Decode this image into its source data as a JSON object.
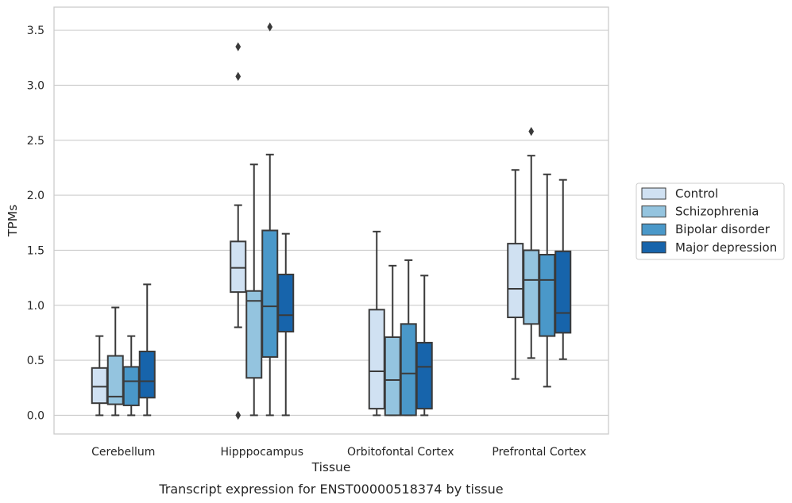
{
  "chart_data": {
    "type": "boxplot",
    "caption": "Transcript expression for ENST00000518374 by tissue",
    "xlabel": "Tissue",
    "ylabel": "TPMs",
    "ylim": [
      -0.17,
      3.71
    ],
    "yticks": [
      0.0,
      0.5,
      1.0,
      1.5,
      2.0,
      2.5,
      3.0,
      3.5
    ],
    "ytick_labels": [
      "0.0",
      "0.5",
      "1.0",
      "1.5",
      "2.0",
      "2.5",
      "3.0",
      "3.5"
    ],
    "grid": true,
    "legend_position": "right",
    "categories": [
      "Cerebellum",
      "Hipppocampus",
      "Orbitofontal Cortex",
      "Prefrontal Cortex"
    ],
    "series": [
      {
        "name": "Control",
        "color": "#d0e1f2",
        "boxes": [
          {
            "whislo": 0.0,
            "q1": 0.11,
            "med": 0.26,
            "q3": 0.43,
            "whishi": 0.72,
            "fliers": []
          },
          {
            "whislo": 0.8,
            "q1": 1.12,
            "med": 1.34,
            "q3": 1.58,
            "whishi": 1.91,
            "fliers": [
              0.0,
              3.08,
              3.35
            ]
          },
          {
            "whislo": 0.0,
            "q1": 0.06,
            "med": 0.4,
            "q3": 0.96,
            "whishi": 1.67,
            "fliers": []
          },
          {
            "whislo": 0.33,
            "q1": 0.89,
            "med": 1.15,
            "q3": 1.56,
            "whishi": 2.23,
            "fliers": []
          }
        ]
      },
      {
        "name": "Schizophrenia",
        "color": "#94c4df",
        "boxes": [
          {
            "whislo": 0.0,
            "q1": 0.1,
            "med": 0.17,
            "q3": 0.54,
            "whishi": 0.98,
            "fliers": []
          },
          {
            "whislo": 0.0,
            "q1": 0.34,
            "med": 1.04,
            "q3": 1.13,
            "whishi": 2.28,
            "fliers": []
          },
          {
            "whislo": 0.0,
            "q1": 0.0,
            "med": 0.32,
            "q3": 0.71,
            "whishi": 1.36,
            "fliers": []
          },
          {
            "whislo": 0.52,
            "q1": 0.83,
            "med": 1.23,
            "q3": 1.5,
            "whishi": 2.36,
            "fliers": [
              2.58
            ]
          }
        ]
      },
      {
        "name": "Bipolar disorder",
        "color": "#4a98c9",
        "boxes": [
          {
            "whislo": 0.0,
            "q1": 0.09,
            "med": 0.31,
            "q3": 0.44,
            "whishi": 0.72,
            "fliers": []
          },
          {
            "whislo": 0.0,
            "q1": 0.53,
            "med": 0.99,
            "q3": 1.68,
            "whishi": 2.37,
            "fliers": [
              3.53
            ]
          },
          {
            "whislo": 0.0,
            "q1": 0.0,
            "med": 0.38,
            "q3": 0.83,
            "whishi": 1.41,
            "fliers": []
          },
          {
            "whislo": 0.26,
            "q1": 0.72,
            "med": 1.23,
            "q3": 1.46,
            "whishi": 2.19,
            "fliers": []
          }
        ]
      },
      {
        "name": "Major depression",
        "color": "#1764ab",
        "boxes": [
          {
            "whislo": 0.0,
            "q1": 0.16,
            "med": 0.31,
            "q3": 0.58,
            "whishi": 1.19,
            "fliers": []
          },
          {
            "whislo": 0.0,
            "q1": 0.76,
            "med": 0.91,
            "q3": 1.28,
            "whishi": 1.65,
            "fliers": []
          },
          {
            "whislo": 0.0,
            "q1": 0.06,
            "med": 0.44,
            "q3": 0.66,
            "whishi": 1.27,
            "fliers": []
          },
          {
            "whislo": 0.51,
            "q1": 0.75,
            "med": 0.93,
            "q3": 1.49,
            "whishi": 2.14,
            "fliers": []
          }
        ]
      }
    ]
  }
}
